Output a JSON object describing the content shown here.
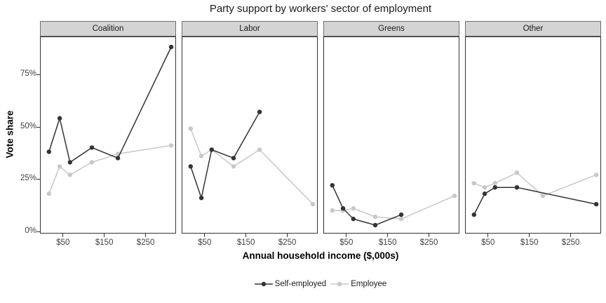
{
  "chart_data": {
    "type": "line",
    "title": "Party support by workers' sector of employment",
    "xlabel": "Annual household income ($,000s)",
    "ylabel": "Vote share",
    "grid": "off",
    "legend_position": "bottom",
    "x_range": [
      -4,
      322
    ],
    "y_range": [
      -0.67,
      92.67
    ],
    "x_ticks": {
      "values": [
        50,
        150,
        250
      ],
      "labels": [
        "$50",
        "$150",
        "$250"
      ]
    },
    "y_ticks": {
      "values": [
        0,
        25,
        50,
        75
      ],
      "labels": [
        "0%",
        "25%",
        "50%",
        "75%"
      ]
    },
    "series_styles": [
      {
        "name": "Self-employed",
        "color": "#333333"
      },
      {
        "name": "Employee",
        "color": "#c8c8c8"
      }
    ],
    "facets": [
      {
        "label": "Coalition",
        "series": [
          {
            "name": "Self-employed",
            "x": [
              16,
              42,
              67,
              120,
              183,
              312
            ],
            "y": [
              38,
              54,
              33,
              40,
              35,
              88
            ]
          },
          {
            "name": "Employee",
            "x": [
              16,
              42,
              67,
              120,
              183,
              312
            ],
            "y": [
              18,
              31,
              27,
              33,
              37,
              41
            ]
          }
        ]
      },
      {
        "label": "Labor",
        "series": [
          {
            "name": "Self-employed",
            "x": [
              16,
              42,
              67,
              120,
              183
            ],
            "y": [
              31,
              16,
              39,
              35,
              57
            ]
          },
          {
            "name": "Employee",
            "x": [
              16,
              42,
              67,
              120,
              183,
              312
            ],
            "y": [
              49,
              36,
              39,
              31,
              39,
              13
            ]
          }
        ]
      },
      {
        "label": "Greens",
        "series": [
          {
            "name": "Self-employed",
            "x": [
              16,
              42,
              67,
              120,
              183
            ],
            "y": [
              22,
              11,
              6,
              3,
              8
            ]
          },
          {
            "name": "Employee",
            "x": [
              16,
              42,
              67,
              120,
              183,
              312
            ],
            "y": [
              10,
              10,
              11,
              7,
              6,
              17
            ]
          }
        ]
      },
      {
        "label": "Other",
        "series": [
          {
            "name": "Self-employed",
            "x": [
              16,
              42,
              67,
              120,
              312
            ],
            "y": [
              8,
              18,
              21,
              21,
              13
            ]
          },
          {
            "name": "Employee",
            "x": [
              16,
              42,
              67,
              120,
              183,
              312
            ],
            "y": [
              23,
              21,
              23,
              28,
              17,
              27
            ]
          }
        ]
      }
    ]
  },
  "colors": {
    "self_employed": "#333333",
    "employee": "#c8c8c8",
    "strip_fill": "#d4d4d4",
    "strip_border": "#6e6e6e",
    "panel_border": "#333333",
    "tick_text": "#404040",
    "title_text": "#1a1a1a"
  },
  "legend": {
    "items": [
      {
        "label": "Self-employed"
      },
      {
        "label": "Employee"
      }
    ]
  }
}
